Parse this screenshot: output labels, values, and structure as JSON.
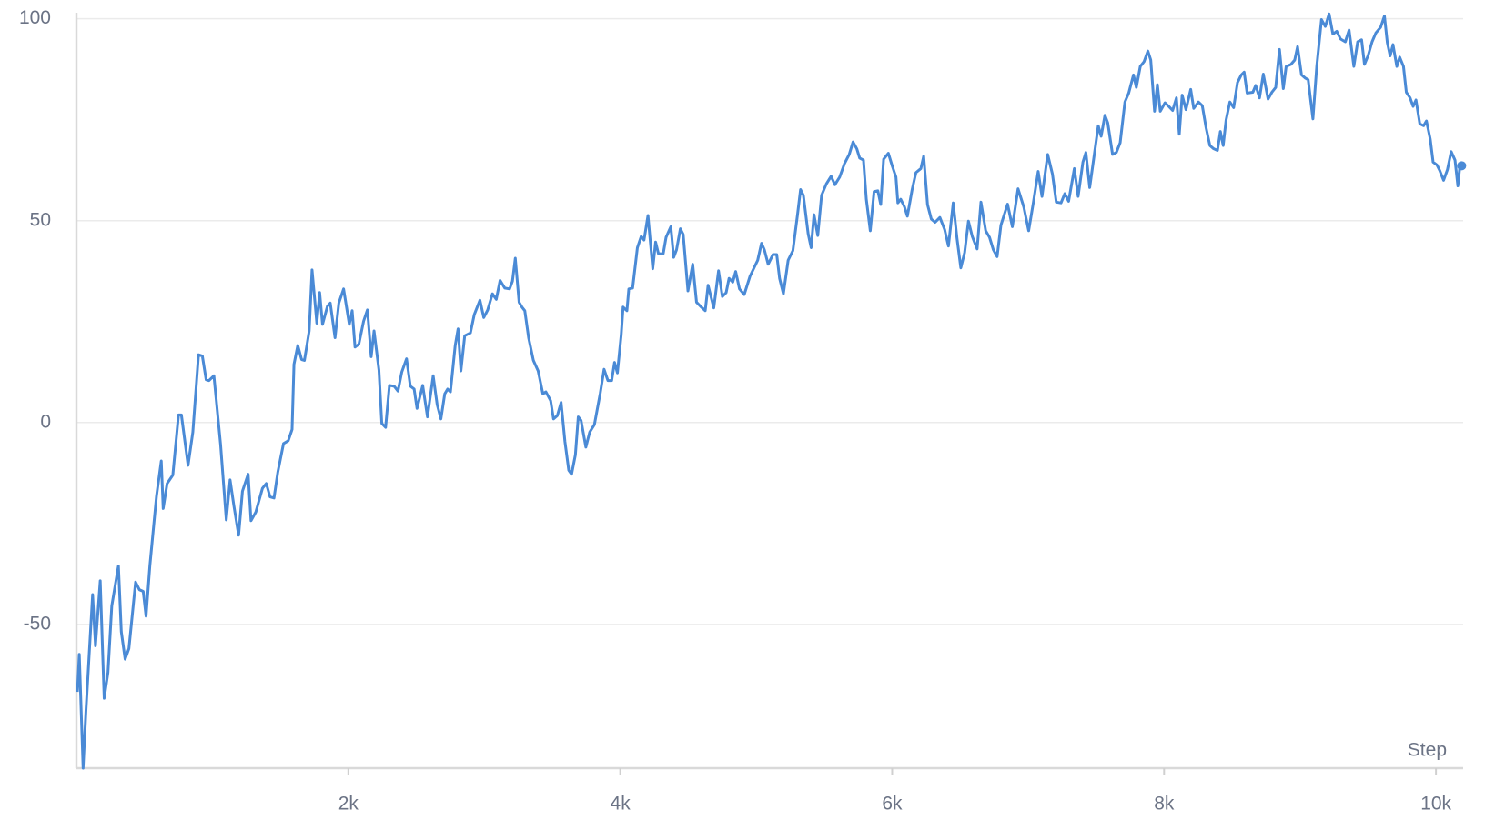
{
  "chart_data": {
    "type": "line",
    "x_label": "Step",
    "color": "#4a8ad6",
    "grid": true,
    "xlim": [
      0,
      10200
    ],
    "ylim": [
      -85.6,
      101.5
    ],
    "xticks": [
      {
        "value": 2000,
        "label": "2k"
      },
      {
        "value": 4000,
        "label": "4k"
      },
      {
        "value": 6000,
        "label": "6k"
      },
      {
        "value": 8000,
        "label": "8k"
      },
      {
        "value": 10000,
        "label": "10k"
      }
    ],
    "yticks": [
      -50,
      0,
      50,
      100
    ],
    "x": [
      7,
      21,
      49,
      70,
      119,
      140,
      175,
      204,
      232,
      260,
      309,
      330,
      358,
      386,
      435,
      463,
      491,
      512,
      540,
      589,
      624,
      638,
      667,
      709,
      751,
      772,
      821,
      856,
      898,
      926,
      954,
      975,
      1011,
      1060,
      1102,
      1130,
      1158,
      1193,
      1221,
      1263,
      1284,
      1319,
      1368,
      1396,
      1424,
      1453,
      1481,
      1523,
      1558,
      1586,
      1600,
      1628,
      1656,
      1677,
      1712,
      1733,
      1768,
      1789,
      1810,
      1846,
      1867,
      1902,
      1930,
      1965,
      2007,
      2028,
      2049,
      2077,
      2112,
      2140,
      2168,
      2189,
      2225,
      2246,
      2274,
      2302,
      2337,
      2365,
      2393,
      2428,
      2456,
      2484,
      2505,
      2547,
      2582,
      2624,
      2653,
      2681,
      2709,
      2730,
      2751,
      2786,
      2807,
      2828,
      2856,
      2898,
      2926,
      2968,
      2996,
      3025,
      3060,
      3088,
      3116,
      3151,
      3186,
      3207,
      3228,
      3256,
      3277,
      3298,
      3326,
      3361,
      3396,
      3431,
      3453,
      3488,
      3509,
      3537,
      3565,
      3593,
      3621,
      3642,
      3670,
      3691,
      3712,
      3747,
      3775,
      3810,
      3853,
      3881,
      3909,
      3937,
      3958,
      3979,
      4007,
      4021,
      4049,
      4063,
      4091,
      4126,
      4154,
      4175,
      4204,
      4239,
      4260,
      4281,
      4316,
      4337,
      4372,
      4393,
      4414,
      4442,
      4463,
      4498,
      4533,
      4561,
      4596,
      4625,
      4646,
      4688,
      4723,
      4751,
      4779,
      4800,
      4828,
      4849,
      4877,
      4912,
      4954,
      5011,
      5039,
      5060,
      5088,
      5123,
      5151,
      5172,
      5200,
      5235,
      5270,
      5305,
      5326,
      5347,
      5382,
      5404,
      5425,
      5453,
      5481,
      5516,
      5551,
      5579,
      5614,
      5649,
      5684,
      5712,
      5740,
      5761,
      5789,
      5810,
      5839,
      5867,
      5895,
      5916,
      5937,
      5972,
      6000,
      6028,
      6042,
      6063,
      6091,
      6112,
      6147,
      6175,
      6211,
      6232,
      6260,
      6288,
      6316,
      6351,
      6386,
      6414,
      6449,
      6477,
      6505,
      6533,
      6561,
      6589,
      6625,
      6653,
      6688,
      6716,
      6744,
      6772,
      6800,
      6849,
      6884,
      6926,
      6968,
      7004,
      7039,
      7074,
      7102,
      7144,
      7179,
      7207,
      7242,
      7270,
      7298,
      7340,
      7368,
      7403,
      7425,
      7453,
      7516,
      7537,
      7565,
      7586,
      7621,
      7649,
      7677,
      7712,
      7740,
      7775,
      7796,
      7825,
      7853,
      7881,
      7902,
      7930,
      7951,
      7972,
      8007,
      8035,
      8063,
      8091,
      8112,
      8133,
      8161,
      8196,
      8218,
      8253,
      8281,
      8309,
      8337,
      8365,
      8393,
      8414,
      8435,
      8456,
      8484,
      8512,
      8540,
      8568,
      8589,
      8611,
      8653,
      8674,
      8702,
      8730,
      8765,
      8793,
      8821,
      8849,
      8877,
      8898,
      8933,
      8961,
      8982,
      9011,
      9039,
      9060,
      9095,
      9123,
      9158,
      9186,
      9214,
      9242,
      9270,
      9298,
      9333,
      9361,
      9396,
      9424,
      9453,
      9474,
      9502,
      9530,
      9558,
      9593,
      9621,
      9642,
      9663,
      9684,
      9712,
      9733,
      9761,
      9782,
      9810,
      9832,
      9853,
      9881,
      9909,
      9930,
      9958,
      9979,
      10007,
      10028,
      10056,
      10084,
      10112,
      10140,
      10161,
      10175,
      10189
    ],
    "values": [
      -66.7,
      -57.4,
      -85.6,
      -71.4,
      -42.6,
      -55.3,
      -39.2,
      -68.3,
      -61.9,
      -45.4,
      -35.5,
      -51.8,
      -58.6,
      -56.0,
      -39.5,
      -41.4,
      -41.8,
      -48.0,
      -35.5,
      -18.2,
      -9.5,
      -21.3,
      -15.1,
      -13.0,
      1.9,
      1.9,
      -10.6,
      -2.4,
      16.8,
      16.5,
      10.6,
      10.4,
      11.6,
      -5.4,
      -24.1,
      -14.2,
      -20.6,
      -27.9,
      -17.0,
      -12.8,
      -24.3,
      -22.2,
      -16.3,
      -15.1,
      -18.4,
      -18.7,
      -12.3,
      -5.2,
      -4.5,
      -1.7,
      14.4,
      19.1,
      15.6,
      15.4,
      22.7,
      37.8,
      24.6,
      32.2,
      24.3,
      28.8,
      29.6,
      21.0,
      29.6,
      33.1,
      24.3,
      27.7,
      18.7,
      19.4,
      25.1,
      27.9,
      16.3,
      22.7,
      13.0,
      -0.2,
      -1.2,
      9.2,
      9.0,
      7.8,
      12.5,
      15.8,
      9.0,
      8.3,
      3.5,
      9.2,
      1.4,
      11.6,
      4.5,
      0.9,
      7.1,
      8.3,
      7.6,
      19.1,
      23.2,
      12.8,
      21.5,
      22.2,
      26.7,
      30.3,
      26.0,
      27.9,
      31.9,
      30.5,
      35.2,
      33.3,
      33.1,
      35.0,
      40.7,
      29.8,
      28.6,
      27.7,
      21.0,
      15.4,
      12.8,
      7.1,
      7.6,
      5.4,
      0.9,
      1.7,
      5.0,
      -4.7,
      -11.8,
      -12.8,
      -8.0,
      1.4,
      0.5,
      -6.1,
      -2.4,
      -0.5,
      7.3,
      13.2,
      10.4,
      10.4,
      14.9,
      12.3,
      21.7,
      28.6,
      27.7,
      33.1,
      33.3,
      43.3,
      46.1,
      45.2,
      51.3,
      38.1,
      44.7,
      41.8,
      41.8,
      45.9,
      48.5,
      40.9,
      42.8,
      48.0,
      46.6,
      32.6,
      39.2,
      29.8,
      28.6,
      27.7,
      34.0,
      28.4,
      37.6,
      31.2,
      32.2,
      35.7,
      34.8,
      37.4,
      33.1,
      31.7,
      36.2,
      40.2,
      44.4,
      42.8,
      39.2,
      41.6,
      41.6,
      35.7,
      31.9,
      40.2,
      42.6,
      51.8,
      57.7,
      56.3,
      46.8,
      43.3,
      51.5,
      46.3,
      56.3,
      59.1,
      61.0,
      58.9,
      60.8,
      64.1,
      66.4,
      69.5,
      67.8,
      65.5,
      65.0,
      55.3,
      47.5,
      57.2,
      57.4,
      54.0,
      65.2,
      66.7,
      63.6,
      60.8,
      54.4,
      55.3,
      53.4,
      51.1,
      57.7,
      61.9,
      62.9,
      66.0,
      54.0,
      50.4,
      49.6,
      50.8,
      47.8,
      43.7,
      54.4,
      45.6,
      38.3,
      42.1,
      49.9,
      46.1,
      43.0,
      54.6,
      47.5,
      45.9,
      42.8,
      41.1,
      48.9,
      54.1,
      48.5,
      57.9,
      53.4,
      47.5,
      54.6,
      62.2,
      56.0,
      66.4,
      61.5,
      54.6,
      54.4,
      56.7,
      54.8,
      62.9,
      56.0,
      64.5,
      66.9,
      58.2,
      73.5,
      70.9,
      76.1,
      74.2,
      66.4,
      66.9,
      69.3,
      79.4,
      81.6,
      86.1,
      83.0,
      88.2,
      89.4,
      92.0,
      89.8,
      77.1,
      83.7,
      77.1,
      79.2,
      78.3,
      77.3,
      80.4,
      71.4,
      81.1,
      77.5,
      82.5,
      77.8,
      79.4,
      78.5,
      73.0,
      68.6,
      67.8,
      67.4,
      72.1,
      68.6,
      74.9,
      79.4,
      78.0,
      84.2,
      86.1,
      86.8,
      81.6,
      81.8,
      83.5,
      80.4,
      86.3,
      80.1,
      81.8,
      83.0,
      92.4,
      82.7,
      88.2,
      88.7,
      89.8,
      93.1,
      86.1,
      85.3,
      84.9,
      75.2,
      88.2,
      99.8,
      98.1,
      101.2,
      96.2,
      96.9,
      95.0,
      94.3,
      97.2,
      88.2,
      94.3,
      94.8,
      88.7,
      91.0,
      94.3,
      96.5,
      97.9,
      100.7,
      94.1,
      90.8,
      93.6,
      88.2,
      90.5,
      88.2,
      81.8,
      80.4,
      78.3,
      79.9,
      74.0,
      73.5,
      74.7,
      70.2,
      64.5,
      63.8,
      62.4,
      60.0,
      62.6,
      67.1,
      65.0,
      58.6,
      63.1,
      63.6
    ]
  }
}
